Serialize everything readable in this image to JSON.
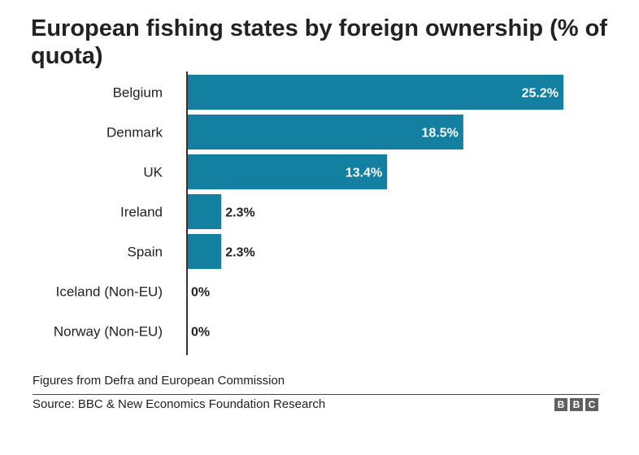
{
  "title": "European fishing states by foreign ownership (% of quota)",
  "chart_data": {
    "type": "bar",
    "orientation": "horizontal",
    "title": "European fishing states by foreign ownership (% of quota)",
    "categories": [
      "Belgium",
      "Denmark",
      "UK",
      "Ireland",
      "Spain",
      "Iceland (Non-EU)",
      "Norway (Non-EU)"
    ],
    "values": [
      25.2,
      18.5,
      13.4,
      2.3,
      2.3,
      0,
      0
    ],
    "value_labels": [
      "25.2%",
      "18.5%",
      "13.4%",
      "2.3%",
      "2.3%",
      "0%",
      "0%"
    ],
    "xlim": [
      0,
      25.2
    ],
    "grid": false,
    "bar_color": "#1380a1"
  },
  "footer": {
    "note": "Figures from Defra and European Commission",
    "source": "Source: BBC & New Economics Foundation Research",
    "logo": [
      "B",
      "B",
      "C"
    ]
  }
}
